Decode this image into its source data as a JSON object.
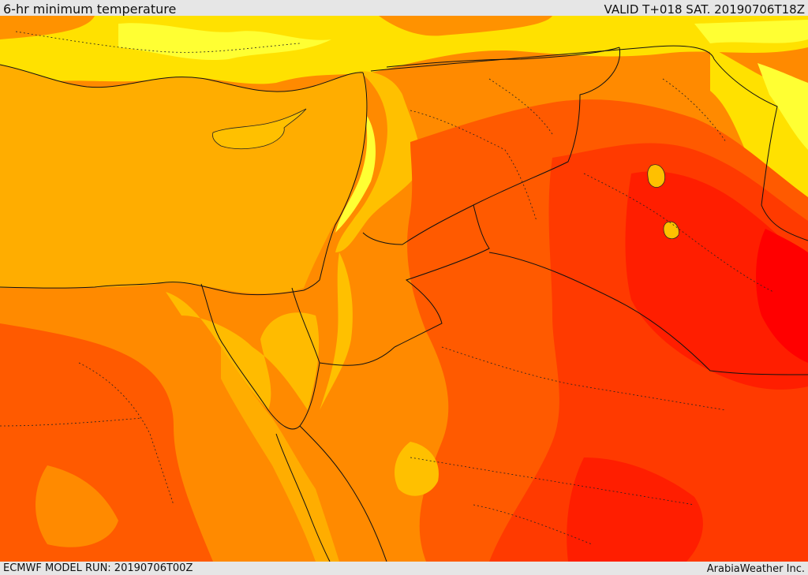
{
  "header": {
    "title": "6-hr minimum temperature",
    "valid": "VALID T+018 SAT. 20190706T18Z"
  },
  "footer": {
    "model_run": "ECMWF MODEL RUN: 20190706T00Z",
    "credit": "ArabiaWeather Inc."
  },
  "palette": {
    "sea": "#ffad00",
    "light_yellow": "#ffff33",
    "yellow": "#ffe100",
    "gold": "#ffc000",
    "orange": "#ff8a00",
    "dark_orange": "#ff5a00",
    "red_orange": "#ff3a00",
    "red": "#ff1e00",
    "deep_red": "#ff0000"
  }
}
